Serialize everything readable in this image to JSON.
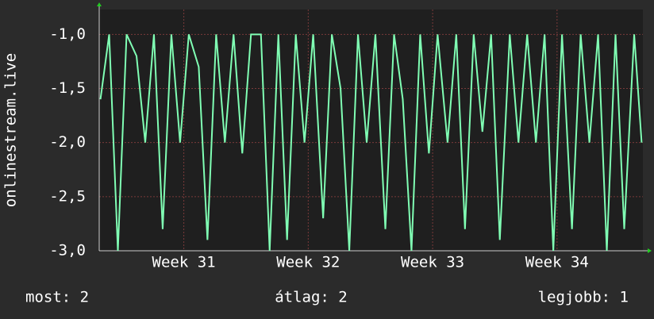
{
  "chart_data": {
    "type": "line",
    "y_label": "onlinestream.live",
    "x": [
      30.33,
      30.4,
      30.47,
      30.54,
      30.62,
      30.69,
      30.76,
      30.83,
      30.9,
      30.97,
      31.04,
      31.12,
      31.19,
      31.26,
      31.33,
      31.4,
      31.47,
      31.54,
      31.62,
      31.69,
      31.76,
      31.83,
      31.9,
      31.97,
      32.04,
      32.12,
      32.19,
      32.26,
      32.33,
      32.4,
      32.47,
      32.54,
      32.62,
      32.69,
      32.76,
      32.83,
      32.9,
      32.97,
      33.04,
      33.12,
      33.19,
      33.26,
      33.33,
      33.4,
      33.47,
      33.54,
      33.62,
      33.69,
      33.76,
      33.83,
      33.9,
      33.97,
      34.04,
      34.12,
      34.19,
      34.26,
      34.33,
      34.4,
      34.47,
      34.54,
      34.62,
      34.68
    ],
    "series": [
      {
        "color": "#80ffb4",
        "values": [
          -1.6,
          -1,
          -3,
          -1,
          -1.2,
          -2,
          -1,
          -2.8,
          -1,
          -2,
          -1,
          -1.3,
          -2.9,
          -1,
          -2,
          -1,
          -2.1,
          -1,
          -1,
          -3,
          -1,
          -2.9,
          -1,
          -2,
          -1,
          -2.7,
          -1,
          -1.5,
          -3,
          -1,
          -2,
          -1,
          -2.8,
          -1,
          -1.6,
          -3,
          -1,
          -2.1,
          -1,
          -2,
          -1,
          -2.8,
          -1,
          -1.9,
          -1,
          -2.9,
          -1,
          -2,
          -1,
          -2,
          -1,
          -3,
          -1,
          -2.8,
          -1,
          -2,
          -1,
          -3,
          -1,
          -2.8,
          -1,
          -2
        ]
      }
    ],
    "xlim": [
      30.32,
      34.69
    ],
    "xticks": [
      {
        "value": 31,
        "label": "Week 31"
      },
      {
        "value": 32,
        "label": "Week 32"
      },
      {
        "value": 33,
        "label": "Week 33"
      },
      {
        "value": 34,
        "label": "Week 34"
      }
    ],
    "ylim": [
      -3,
      -0.77
    ],
    "yticks": [
      {
        "value": -3,
        "label": "-3,0"
      },
      {
        "value": -2.5,
        "label": "-2,5"
      },
      {
        "value": -2,
        "label": "-2,0"
      },
      {
        "value": -1.5,
        "label": "-1,5"
      },
      {
        "value": -1,
        "label": "-1,0"
      }
    ],
    "grid": true,
    "footer": [
      "most: 2",
      "átlag: 2",
      "legjobb: 1"
    ]
  }
}
